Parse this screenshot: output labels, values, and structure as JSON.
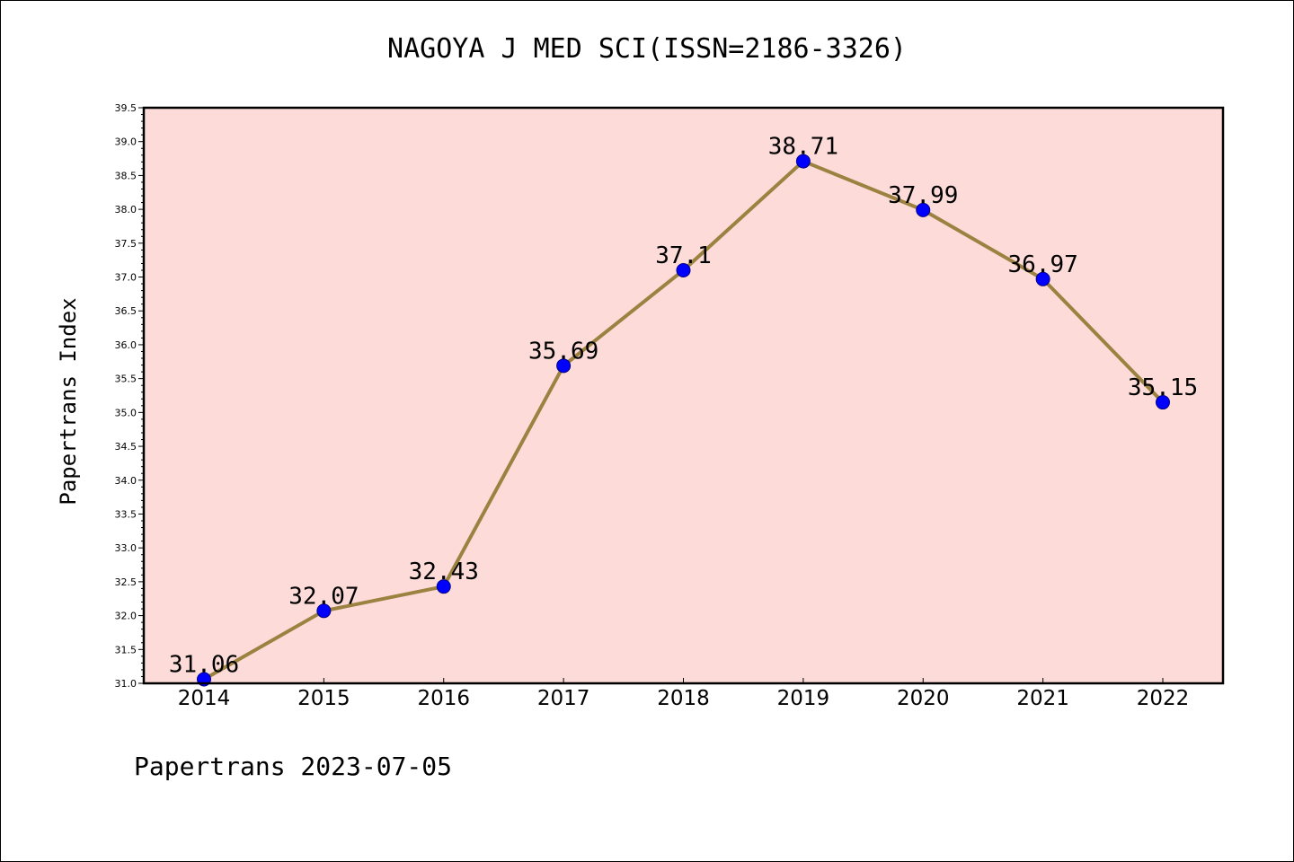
{
  "chart_data": {
    "type": "line",
    "title": "NAGOYA J MED SCI(ISSN=2186-3326)",
    "xlabel": "",
    "ylabel": "Papertrans Index",
    "categories": [
      "2014",
      "2015",
      "2016",
      "2017",
      "2018",
      "2019",
      "2020",
      "2021",
      "2022"
    ],
    "series": [
      {
        "values": [
          31.06,
          32.07,
          32.43,
          35.69,
          37.1,
          38.71,
          37.99,
          36.97,
          35.15
        ],
        "labels": [
          "31.06",
          "32.07",
          "32.43",
          "35.69",
          "37.1",
          "38.71",
          "37.99",
          "36.97",
          "35.15"
        ]
      }
    ],
    "ylim": [
      31.0,
      39.5
    ],
    "yticks": [
      "31.0",
      "31.5",
      "32.0",
      "32.5",
      "33.0",
      "33.5",
      "34.0",
      "34.5",
      "35.0",
      "35.5",
      "36.0",
      "36.5",
      "37.0",
      "37.5",
      "38.0",
      "38.5",
      "39.0",
      "39.5"
    ],
    "grid": false,
    "colors": {
      "plot_background": "#fddbd9",
      "line": "#9b8240",
      "marker": "#0000ff",
      "marker_edge": "#000080"
    }
  },
  "footer": "Papertrans 2023-07-05"
}
